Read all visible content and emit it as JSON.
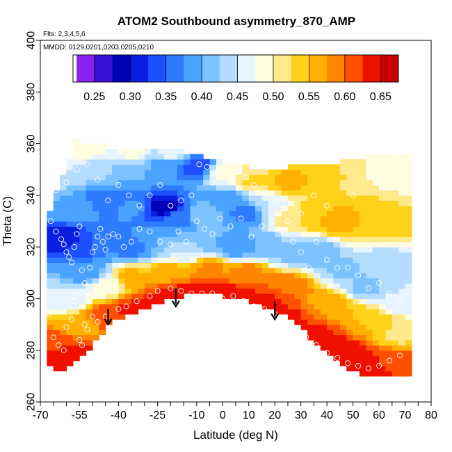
{
  "chart_data": {
    "type": "heatmap",
    "title": "ATOM2 Southbound asymmetry_870_AMP",
    "flights_note": "Flts: 2,3,4,5,6",
    "dates_note": "MMDD: 0129,0201,0203,0205,0210",
    "xlabel": "Latitude (deg N)",
    "ylabel": "Theta (C)",
    "xlim": [
      -70,
      80
    ],
    "ylim": [
      260,
      400
    ],
    "x_ticks": [
      -70,
      -55,
      -40,
      -25,
      -10,
      0,
      10,
      20,
      30,
      40,
      50,
      60,
      70,
      80
    ],
    "x_tick_labels": [
      "-70",
      "-55",
      "-40",
      "-25",
      "-10",
      "0",
      "10",
      "20",
      "30",
      "40",
      "50",
      "60",
      "70",
      "80"
    ],
    "x_minor_ticks": [
      -65,
      -60,
      -50,
      -45,
      -35,
      -30,
      -20,
      -15,
      -5,
      5,
      15,
      25,
      35,
      45,
      55,
      65,
      75
    ],
    "y_ticks": [
      260,
      280,
      300,
      320,
      340,
      360,
      380,
      400
    ],
    "y_tick_labels": [
      "260",
      "280",
      "300",
      "320",
      "340",
      "360",
      "380",
      "400"
    ],
    "colorbar": {
      "range": [
        0.22,
        0.675
      ],
      "ticks": [
        0.25,
        0.3,
        0.35,
        0.4,
        0.45,
        0.5,
        0.55,
        0.6,
        0.65
      ],
      "tick_labels": [
        "0.25",
        "0.30",
        "0.35",
        "0.40",
        "0.45",
        "0.50",
        "0.55",
        "0.60",
        "0.65"
      ],
      "bins": [
        0.225,
        0.25,
        0.275,
        0.3,
        0.325,
        0.35,
        0.375,
        0.4,
        0.425,
        0.45,
        0.475,
        0.5,
        0.525,
        0.55,
        0.575,
        0.6,
        0.625,
        0.65,
        0.675
      ],
      "colors": [
        "#8a22ee",
        "#3a0fd6",
        "#0000b8",
        "#0a1ee0",
        "#1e50ff",
        "#2f7bff",
        "#4aa3ff",
        "#7cc2ff",
        "#b4dcff",
        "#e6f4ff",
        "#fffde0",
        "#ffe98c",
        "#ffd21a",
        "#ffb000",
        "#ff8400",
        "#ff5000",
        "#f01000",
        "#cc0000",
        "#9a1010"
      ]
    },
    "boundary": {
      "top": [
        [
          -67.5,
          331
        ],
        [
          -62,
          346
        ],
        [
          -56,
          362
        ],
        [
          -52,
          360
        ],
        [
          -45,
          359
        ],
        [
          -35,
          358
        ],
        [
          -25,
          359
        ],
        [
          -15,
          357
        ],
        [
          -5,
          354
        ],
        [
          5,
          352
        ],
        [
          15,
          350
        ],
        [
          25,
          351
        ],
        [
          35,
          352
        ],
        [
          45,
          353
        ],
        [
          55,
          355
        ],
        [
          65,
          357
        ],
        [
          70,
          356
        ],
        [
          72,
          348
        ],
        [
          72,
          288
        ]
      ],
      "bottom": [
        [
          71.5,
          271
        ],
        [
          65,
          271
        ],
        [
          55,
          269
        ],
        [
          48,
          273
        ],
        [
          42,
          278
        ],
        [
          35,
          283
        ],
        [
          30,
          290
        ],
        [
          25,
          293
        ],
        [
          20,
          295
        ],
        [
          10,
          299
        ],
        [
          0,
          301
        ],
        [
          -8,
          302
        ],
        [
          -15,
          301
        ],
        [
          -22,
          299
        ],
        [
          -30,
          296
        ],
        [
          -36,
          294
        ],
        [
          -42,
          291
        ],
        [
          -48,
          285
        ],
        [
          -52,
          279
        ],
        [
          -58,
          274
        ],
        [
          -62,
          272
        ],
        [
          -66,
          273
        ],
        [
          -67.5,
          275
        ]
      ]
    },
    "anchors": [
      {
        "lat": -65,
        "theta": 283,
        "value": 0.62
      },
      {
        "lat": -58,
        "theta": 278,
        "value": 0.64
      },
      {
        "lat": -55,
        "theta": 290,
        "value": 0.55
      },
      {
        "lat": -45,
        "theta": 293,
        "value": 0.62
      },
      {
        "lat": -35,
        "theta": 296,
        "value": 0.63
      },
      {
        "lat": -25,
        "theta": 300,
        "value": 0.63
      },
      {
        "lat": -15,
        "theta": 302,
        "value": 0.64
      },
      {
        "lat": -5,
        "theta": 302,
        "value": 0.64
      },
      {
        "lat": 5,
        "theta": 301,
        "value": 0.64
      },
      {
        "lat": 15,
        "theta": 298,
        "value": 0.64
      },
      {
        "lat": 25,
        "theta": 293,
        "value": 0.63
      },
      {
        "lat": 35,
        "theta": 285,
        "value": 0.64
      },
      {
        "lat": 45,
        "theta": 279,
        "value": 0.65
      },
      {
        "lat": 55,
        "theta": 274,
        "value": 0.64
      },
      {
        "lat": 65,
        "theta": 276,
        "value": 0.62
      },
      {
        "lat": -35,
        "theta": 308,
        "value": 0.56
      },
      {
        "lat": -20,
        "theta": 310,
        "value": 0.57
      },
      {
        "lat": -5,
        "theta": 312,
        "value": 0.58
      },
      {
        "lat": 10,
        "theta": 310,
        "value": 0.59
      },
      {
        "lat": 25,
        "theta": 305,
        "value": 0.6
      },
      {
        "lat": 40,
        "theta": 298,
        "value": 0.57
      },
      {
        "lat": 55,
        "theta": 292,
        "value": 0.55
      },
      {
        "lat": 68,
        "theta": 286,
        "value": 0.52
      },
      {
        "lat": -60,
        "theta": 300,
        "value": 0.45
      },
      {
        "lat": -45,
        "theta": 305,
        "value": 0.48
      },
      {
        "lat": -55,
        "theta": 320,
        "value": 0.34
      },
      {
        "lat": -60,
        "theta": 323,
        "value": 0.3
      },
      {
        "lat": -52,
        "theta": 310,
        "value": 0.38
      },
      {
        "lat": -45,
        "theta": 322,
        "value": 0.37
      },
      {
        "lat": -35,
        "theta": 320,
        "value": 0.36
      },
      {
        "lat": -25,
        "theta": 322,
        "value": 0.4
      },
      {
        "lat": -15,
        "theta": 318,
        "value": 0.45
      },
      {
        "lat": -5,
        "theta": 322,
        "value": 0.4
      },
      {
        "lat": 5,
        "theta": 320,
        "value": 0.38
      },
      {
        "lat": 15,
        "theta": 320,
        "value": 0.4
      },
      {
        "lat": 25,
        "theta": 318,
        "value": 0.42
      },
      {
        "lat": 35,
        "theta": 318,
        "value": 0.4
      },
      {
        "lat": 45,
        "theta": 312,
        "value": 0.42
      },
      {
        "lat": 55,
        "theta": 305,
        "value": 0.42
      },
      {
        "lat": 62,
        "theta": 315,
        "value": 0.44
      },
      {
        "lat": 68,
        "theta": 300,
        "value": 0.45
      },
      {
        "lat": -58,
        "theta": 335,
        "value": 0.4
      },
      {
        "lat": -45,
        "theta": 338,
        "value": 0.36
      },
      {
        "lat": -35,
        "theta": 335,
        "value": 0.38
      },
      {
        "lat": -22,
        "theta": 335,
        "value": 0.28
      },
      {
        "lat": -18,
        "theta": 332,
        "value": 0.36
      },
      {
        "lat": -8,
        "theta": 333,
        "value": 0.42
      },
      {
        "lat": 2,
        "theta": 338,
        "value": 0.38
      },
      {
        "lat": 10,
        "theta": 333,
        "value": 0.36
      },
      {
        "lat": 18,
        "theta": 335,
        "value": 0.45
      },
      {
        "lat": 25,
        "theta": 332,
        "value": 0.52
      },
      {
        "lat": 35,
        "theta": 332,
        "value": 0.55
      },
      {
        "lat": 45,
        "theta": 330,
        "value": 0.56
      },
      {
        "lat": 55,
        "theta": 330,
        "value": 0.55
      },
      {
        "lat": 65,
        "theta": 328,
        "value": 0.53
      },
      {
        "lat": -60,
        "theta": 350,
        "value": 0.45
      },
      {
        "lat": -48,
        "theta": 352,
        "value": 0.44
      },
      {
        "lat": -35,
        "theta": 350,
        "value": 0.4
      },
      {
        "lat": -22,
        "theta": 352,
        "value": 0.38
      },
      {
        "lat": -10,
        "theta": 351,
        "value": 0.33
      },
      {
        "lat": 0,
        "theta": 349,
        "value": 0.48
      },
      {
        "lat": 12,
        "theta": 346,
        "value": 0.53
      },
      {
        "lat": 25,
        "theta": 346,
        "value": 0.56
      },
      {
        "lat": 40,
        "theta": 348,
        "value": 0.53
      },
      {
        "lat": 55,
        "theta": 350,
        "value": 0.5
      },
      {
        "lat": 68,
        "theta": 350,
        "value": 0.48
      },
      {
        "lat": -52,
        "theta": 358,
        "value": 0.5
      },
      {
        "lat": -35,
        "theta": 356,
        "value": 0.48
      },
      {
        "lat": -20,
        "theta": 356,
        "value": 0.46
      },
      {
        "lat": 10,
        "theta": 350,
        "value": 0.5
      }
    ],
    "observations": [
      [
        -67,
        294
      ],
      [
        -65,
        285
      ],
      [
        -63,
        282
      ],
      [
        -61,
        280
      ],
      [
        -60,
        289
      ],
      [
        -58,
        292
      ],
      [
        -57,
        299
      ],
      [
        -56,
        302
      ],
      [
        -55,
        284
      ],
      [
        -54,
        282
      ],
      [
        -53,
        290
      ],
      [
        -52,
        288
      ],
      [
        -50,
        293
      ],
      [
        -48,
        291
      ],
      [
        -45,
        293
      ],
      [
        -40,
        296
      ],
      [
        -37,
        297
      ],
      [
        -33,
        299
      ],
      [
        -28,
        301
      ],
      [
        -25,
        303
      ],
      [
        -20,
        304
      ],
      [
        -16,
        303
      ],
      [
        -12,
        302
      ],
      [
        -8,
        302
      ],
      [
        -4,
        302
      ],
      [
        0,
        300
      ],
      [
        4,
        301
      ],
      [
        8,
        299
      ],
      [
        12,
        297
      ],
      [
        16,
        296
      ],
      [
        20,
        294
      ],
      [
        24,
        291
      ],
      [
        28,
        288
      ],
      [
        32,
        285
      ],
      [
        36,
        282
      ],
      [
        40,
        279
      ],
      [
        44,
        277
      ],
      [
        48,
        275
      ],
      [
        52,
        274
      ],
      [
        56,
        273
      ],
      [
        60,
        274
      ],
      [
        64,
        276
      ],
      [
        68,
        278
      ],
      [
        -66,
        330
      ],
      [
        -64,
        326
      ],
      [
        -62,
        323
      ],
      [
        -61,
        321
      ],
      [
        -60,
        318
      ],
      [
        -59,
        316
      ],
      [
        -58,
        314
      ],
      [
        -57,
        320
      ],
      [
        -56,
        325
      ],
      [
        -55,
        328
      ],
      [
        -54,
        311
      ],
      [
        -53,
        306
      ],
      [
        -52,
        303
      ],
      [
        -51,
        312
      ],
      [
        -50,
        318
      ],
      [
        -49,
        320
      ],
      [
        -48,
        324
      ],
      [
        -47,
        327
      ],
      [
        -46,
        322
      ],
      [
        -45,
        319
      ],
      [
        -44,
        324
      ],
      [
        -42,
        325
      ],
      [
        -40,
        324
      ],
      [
        -38,
        320
      ],
      [
        -35,
        322
      ],
      [
        -32,
        327
      ],
      [
        -28,
        326
      ],
      [
        -24,
        322
      ],
      [
        -20,
        321
      ],
      [
        -17,
        326
      ],
      [
        -14,
        322
      ],
      [
        -10,
        330
      ],
      [
        -7,
        327
      ],
      [
        -4,
        325
      ],
      [
        -1,
        331
      ],
      [
        3,
        328
      ],
      [
        7,
        331
      ],
      [
        11,
        324
      ],
      [
        15,
        328
      ],
      [
        19,
        330
      ],
      [
        23,
        326
      ],
      [
        27,
        322
      ],
      [
        30,
        318
      ],
      [
        33,
        312
      ],
      [
        36,
        322
      ],
      [
        40,
        315
      ],
      [
        44,
        312
      ],
      [
        48,
        312
      ],
      [
        52,
        309
      ],
      [
        56,
        304
      ],
      [
        60,
        306
      ],
      [
        64,
        302
      ],
      [
        68,
        300
      ],
      [
        -64,
        342
      ],
      [
        -60,
        345
      ],
      [
        -56,
        350
      ],
      [
        -52,
        352
      ],
      [
        -48,
        346
      ],
      [
        -44,
        338
      ],
      [
        -40,
        344
      ],
      [
        -36,
        340
      ],
      [
        -32,
        336
      ],
      [
        -28,
        340
      ],
      [
        -24,
        344
      ],
      [
        -20,
        336
      ],
      [
        -16,
        338
      ],
      [
        -12,
        340
      ],
      [
        -9,
        352
      ],
      [
        -6,
        351
      ],
      [
        -3,
        348
      ],
      [
        0,
        350
      ],
      [
        3,
        346
      ],
      [
        6,
        349
      ],
      [
        9,
        347
      ],
      [
        12,
        344
      ],
      [
        16,
        341
      ],
      [
        20,
        338
      ],
      [
        25,
        330
      ],
      [
        30,
        333
      ],
      [
        35,
        340
      ],
      [
        40,
        336
      ],
      [
        50,
        340
      ],
      [
        60,
        345
      ],
      [
        66,
        356
      ]
    ],
    "arrows": [
      {
        "lat": -44,
        "theta_top": 296,
        "theta_tip": 290
      },
      {
        "lat": -18,
        "theta_top": 304,
        "theta_tip": 297
      },
      {
        "lat": 20,
        "theta_top": 299,
        "theta_tip": 292
      }
    ]
  }
}
